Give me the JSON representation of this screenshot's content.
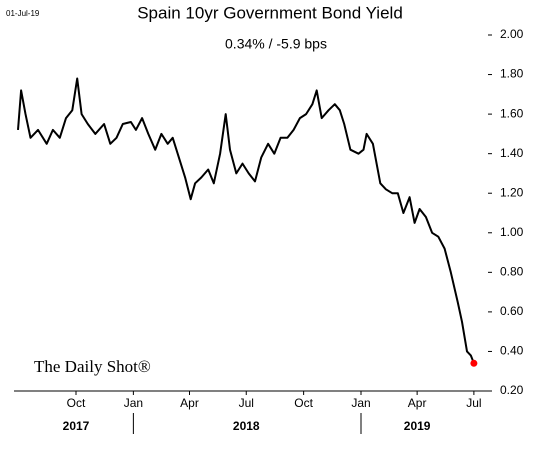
{
  "chart_data": {
    "type": "line",
    "title": "Spain 10yr Government Bond Yield",
    "subtitle": "0.34%  /  -5.9 bps",
    "date_label": "01-Jul-19",
    "watermark": "The Daily Shot®",
    "x": [
      "2017-06-30",
      "2017-07-05",
      "2017-07-12",
      "2017-07-20",
      "2017-08-01",
      "2017-08-15",
      "2017-08-25",
      "2017-09-05",
      "2017-09-15",
      "2017-09-25",
      "2017-10-03",
      "2017-10-10",
      "2017-10-20",
      "2017-11-01",
      "2017-11-15",
      "2017-11-25",
      "2017-12-05",
      "2017-12-15",
      "2017-12-28",
      "2018-01-05",
      "2018-01-15",
      "2018-01-25",
      "2018-02-05",
      "2018-02-15",
      "2018-02-25",
      "2018-03-05",
      "2018-03-15",
      "2018-03-25",
      "2018-04-03",
      "2018-04-10",
      "2018-04-20",
      "2018-05-01",
      "2018-05-10",
      "2018-05-20",
      "2018-05-29",
      "2018-06-05",
      "2018-06-15",
      "2018-06-25",
      "2018-07-05",
      "2018-07-15",
      "2018-07-25",
      "2018-08-05",
      "2018-08-15",
      "2018-08-25",
      "2018-09-05",
      "2018-09-15",
      "2018-09-25",
      "2018-10-05",
      "2018-10-15",
      "2018-10-22",
      "2018-10-30",
      "2018-11-10",
      "2018-11-20",
      "2018-11-28",
      "2018-12-05",
      "2018-12-15",
      "2018-12-28",
      "2019-01-05",
      "2019-01-10",
      "2019-01-20",
      "2019-02-01",
      "2019-02-10",
      "2019-02-20",
      "2019-03-01",
      "2019-03-10",
      "2019-03-20",
      "2019-03-28",
      "2019-04-05",
      "2019-04-15",
      "2019-04-25",
      "2019-05-05",
      "2019-05-15",
      "2019-05-25",
      "2019-06-05",
      "2019-06-12",
      "2019-06-20",
      "2019-06-26",
      "2019-07-01"
    ],
    "series": [
      {
        "name": "Spain 10yr",
        "color": "#000000",
        "values": [
          1.52,
          1.72,
          1.6,
          1.48,
          1.52,
          1.45,
          1.52,
          1.48,
          1.58,
          1.62,
          1.78,
          1.6,
          1.55,
          1.5,
          1.55,
          1.45,
          1.48,
          1.55,
          1.56,
          1.52,
          1.58,
          1.5,
          1.42,
          1.5,
          1.45,
          1.48,
          1.38,
          1.28,
          1.17,
          1.25,
          1.28,
          1.32,
          1.25,
          1.4,
          1.6,
          1.42,
          1.3,
          1.35,
          1.3,
          1.26,
          1.38,
          1.45,
          1.4,
          1.48,
          1.48,
          1.52,
          1.58,
          1.6,
          1.65,
          1.72,
          1.58,
          1.62,
          1.65,
          1.62,
          1.55,
          1.42,
          1.4,
          1.42,
          1.5,
          1.45,
          1.25,
          1.22,
          1.2,
          1.2,
          1.1,
          1.18,
          1.05,
          1.12,
          1.08,
          1.0,
          0.98,
          0.92,
          0.8,
          0.65,
          0.55,
          0.4,
          0.38,
          0.34
        ]
      }
    ],
    "last_point_color": "#ff0000",
    "xlim": [
      "2017-06-30",
      "2019-07-06"
    ],
    "xticks": [
      {
        "value": "2017-10-01",
        "label": "Oct"
      },
      {
        "value": "2018-01-01",
        "label": "Jan"
      },
      {
        "value": "2018-04-01",
        "label": "Apr"
      },
      {
        "value": "2018-07-01",
        "label": "Jul"
      },
      {
        "value": "2018-10-01",
        "label": "Oct"
      },
      {
        "value": "2019-01-01",
        "label": "Jan"
      },
      {
        "value": "2019-04-01",
        "label": "Apr"
      },
      {
        "value": "2019-07-01",
        "label": "Jul"
      }
    ],
    "year_labels": [
      {
        "value": "2017-10-01",
        "label": "2017"
      },
      {
        "value": "2018-07-01",
        "label": "2018"
      },
      {
        "value": "2019-04-01",
        "label": "2019"
      }
    ],
    "ylim": [
      0.2,
      2.0
    ],
    "yticks": [
      {
        "value": 0.2,
        "label": "0.20"
      },
      {
        "value": 0.4,
        "label": "0.40"
      },
      {
        "value": 0.6,
        "label": "0.60"
      },
      {
        "value": 0.8,
        "label": "0.80"
      },
      {
        "value": 1.0,
        "label": "1.00"
      },
      {
        "value": 1.2,
        "label": "1.20"
      },
      {
        "value": 1.4,
        "label": "1.40"
      },
      {
        "value": 1.6,
        "label": "1.60"
      },
      {
        "value": 1.8,
        "label": "1.80"
      },
      {
        "value": 2.0,
        "label": "2.00"
      }
    ]
  }
}
